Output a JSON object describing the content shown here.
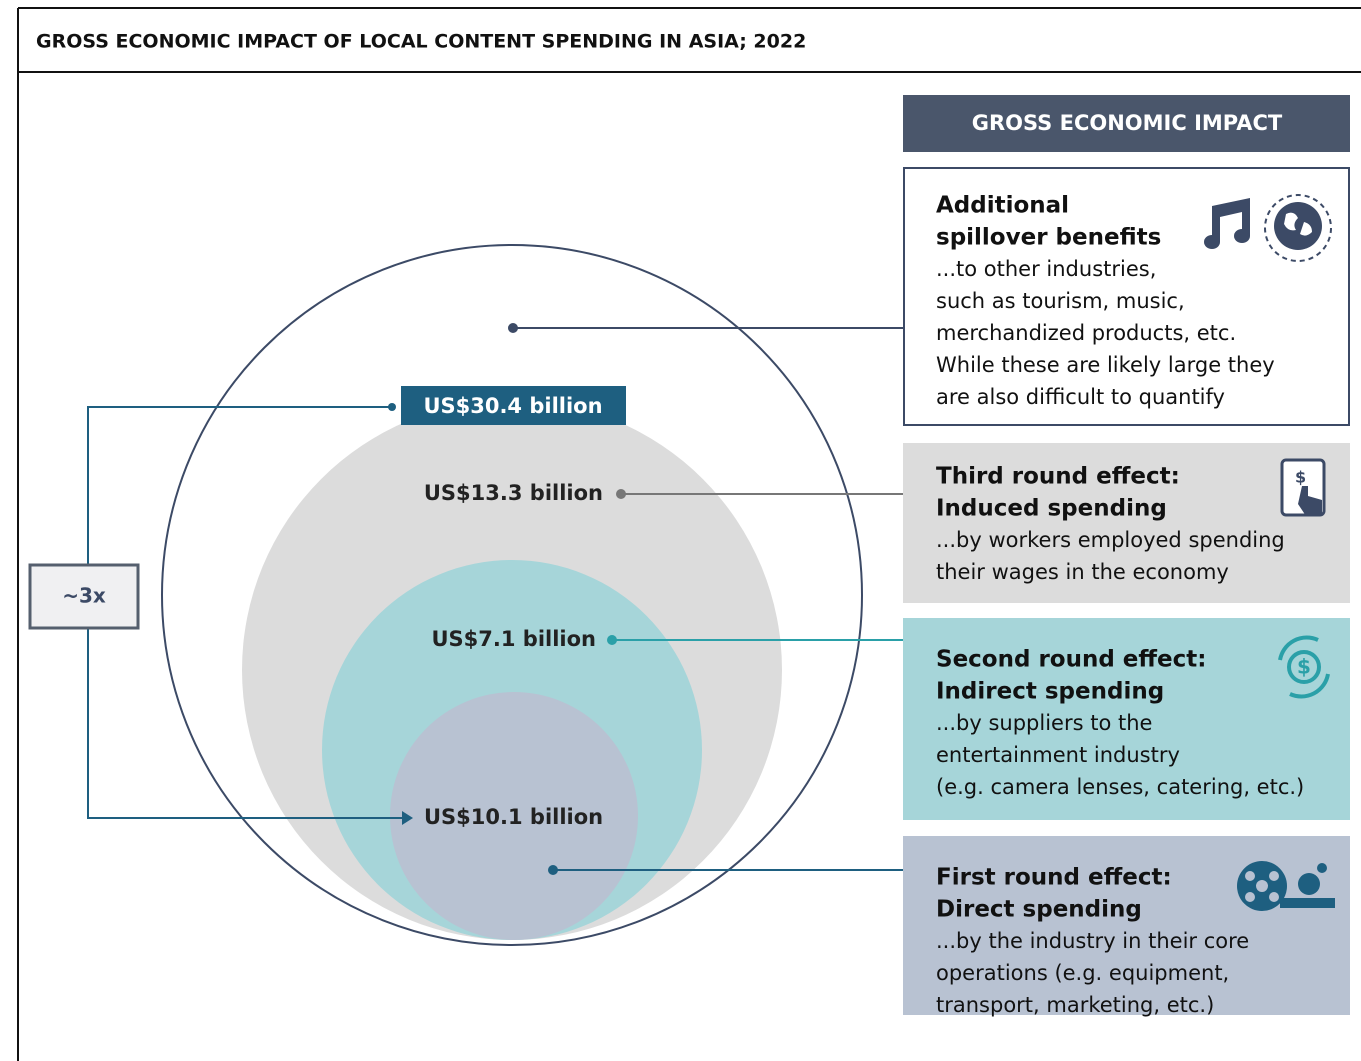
{
  "title": "GROSS ECONOMIC IMPACT OF LOCAL CONTENT SPENDING IN ASIA; 2022",
  "panel_header": "GROSS ECONOMIC IMPACT",
  "multiplier": "~3x",
  "circle_labels": {
    "total": "US$30.4 billion",
    "third": "US$13.3 billion",
    "second": "US$7.1 billion",
    "first": "US$10.1 billion"
  },
  "effects": [
    {
      "title": [
        "Additional",
        "spillover benefits"
      ],
      "description": [
        "...to other industries,",
        "such as tourism, music,",
        "merchandized products, etc.",
        "While these are likely large they",
        "are also difficult to quantify"
      ]
    },
    {
      "title": [
        "Third round effect:",
        "Induced spending"
      ],
      "description": [
        "...by workers employed spending",
        "their wages in the economy"
      ]
    },
    {
      "title": [
        "Second round effect:",
        "Indirect spending"
      ],
      "description": [
        "...by suppliers to the",
        "entertainment industry",
        "(e.g. camera lenses, catering, etc.)"
      ]
    },
    {
      "title": [
        "First round effect:",
        "Direct spending"
      ],
      "description": [
        "...by the industry in their core",
        "operations (e.g. equipment,",
        "transport, marketing, etc.)"
      ]
    }
  ]
}
